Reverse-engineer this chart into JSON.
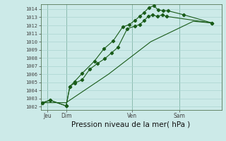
{
  "bg_color": "#cceae8",
  "grid_color": "#aad4d0",
  "line_color": "#1a5c1a",
  "marker_color": "#1a5c1a",
  "xlabel": "Pression niveau de la mer( hPa )",
  "xlabel_fontsize": 7.5,
  "ytick_labels": [
    1002,
    1003,
    1004,
    1005,
    1006,
    1007,
    1008,
    1009,
    1010,
    1011,
    1012,
    1013,
    1014
  ],
  "ylim": [
    1001.6,
    1014.6
  ],
  "xlim": [
    -0.2,
    19.0
  ],
  "xtick_positions": [
    0.5,
    2.5,
    9.5,
    14.5
  ],
  "xtick_labels": [
    "Jeu",
    "Dim",
    "Ven",
    "Sam"
  ],
  "vline_positions": [
    0.5,
    2.5,
    9.5,
    14.5
  ],
  "series1_x": [
    0.0,
    0.8,
    2.5,
    2.9,
    3.4,
    4.2,
    5.0,
    5.8,
    6.6,
    7.3,
    8.0,
    9.0,
    9.8,
    10.3,
    10.8,
    11.2,
    11.7,
    12.2,
    12.7,
    13.2,
    18.0
  ],
  "series1_y": [
    1002.5,
    1002.8,
    1002.1,
    1004.5,
    1004.9,
    1005.3,
    1006.6,
    1007.3,
    1007.9,
    1008.6,
    1009.3,
    1011.6,
    1011.9,
    1012.1,
    1012.6,
    1013.1,
    1013.3,
    1013.1,
    1013.3,
    1013.1,
    1012.3
  ],
  "series2_x": [
    0.0,
    0.8,
    2.5,
    2.9,
    3.4,
    4.2,
    5.5,
    6.5,
    7.5,
    8.5,
    9.2,
    9.8,
    10.3,
    10.8,
    11.3,
    11.8,
    12.3,
    12.8,
    13.3,
    15.0,
    18.0
  ],
  "series2_y": [
    1002.5,
    1002.8,
    1002.1,
    1004.5,
    1005.1,
    1006.1,
    1007.6,
    1009.1,
    1010.1,
    1011.8,
    1012.1,
    1012.6,
    1013.1,
    1013.6,
    1014.2,
    1014.4,
    1013.9,
    1013.8,
    1013.8,
    1013.3,
    1012.3
  ],
  "series3_x": [
    0.0,
    2.5,
    7.0,
    11.5,
    16.0,
    18.0
  ],
  "series3_y": [
    1002.5,
    1002.5,
    1006.0,
    1010.0,
    1012.5,
    1012.3
  ]
}
